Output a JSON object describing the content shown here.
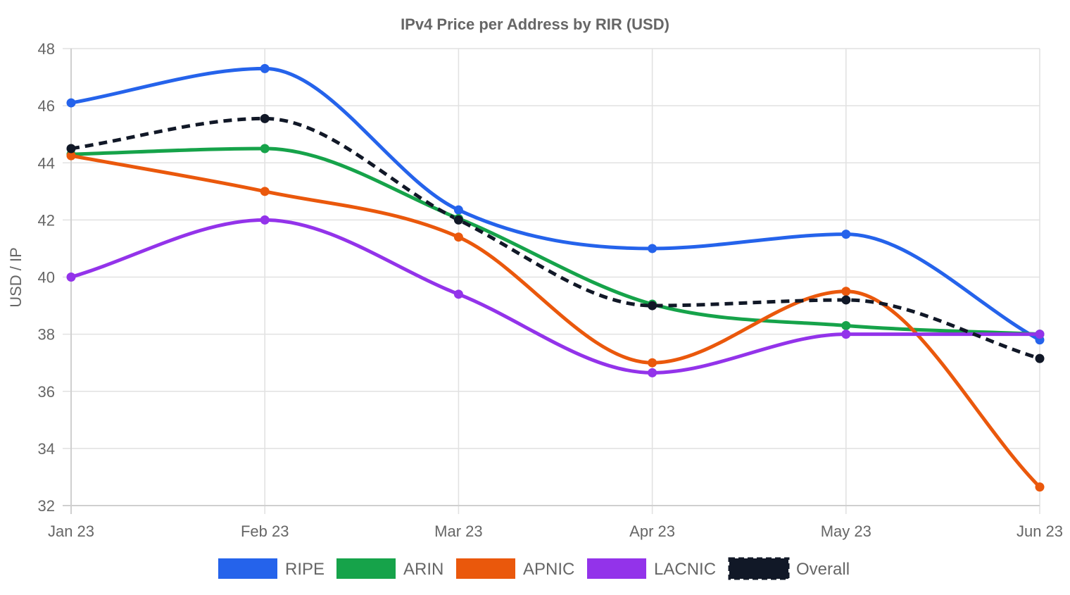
{
  "chart_data": {
    "type": "line",
    "title": "IPv4 Price per Address by RIR (USD)",
    "xlabel": "",
    "ylabel": "USD / IP",
    "categories": [
      "Jan 23",
      "Feb 23",
      "Mar 23",
      "Apr 23",
      "May 23",
      "Jun 23"
    ],
    "ylim": [
      32,
      48
    ],
    "yticks": [
      32,
      34,
      36,
      38,
      40,
      42,
      44,
      46,
      48
    ],
    "grid": true,
    "legend_position": "bottom",
    "series": [
      {
        "name": "RIPE",
        "color": "#2563eb",
        "dashed": false,
        "values": [
          46.1,
          47.3,
          42.35,
          41.0,
          41.5,
          37.8
        ]
      },
      {
        "name": "ARIN",
        "color": "#16a34a",
        "dashed": false,
        "values": [
          44.3,
          44.5,
          42.05,
          39.05,
          38.3,
          38.0
        ]
      },
      {
        "name": "APNIC",
        "color": "#ea580c",
        "dashed": false,
        "values": [
          44.25,
          43.0,
          41.4,
          37.0,
          39.5,
          32.65
        ]
      },
      {
        "name": "LACNIC",
        "color": "#9333ea",
        "dashed": false,
        "values": [
          40.0,
          42.0,
          39.4,
          36.65,
          38.0,
          38.0
        ]
      },
      {
        "name": "Overall",
        "color": "#111827",
        "dashed": true,
        "values": [
          44.5,
          45.55,
          42.0,
          39.0,
          39.2,
          37.15
        ]
      }
    ]
  }
}
